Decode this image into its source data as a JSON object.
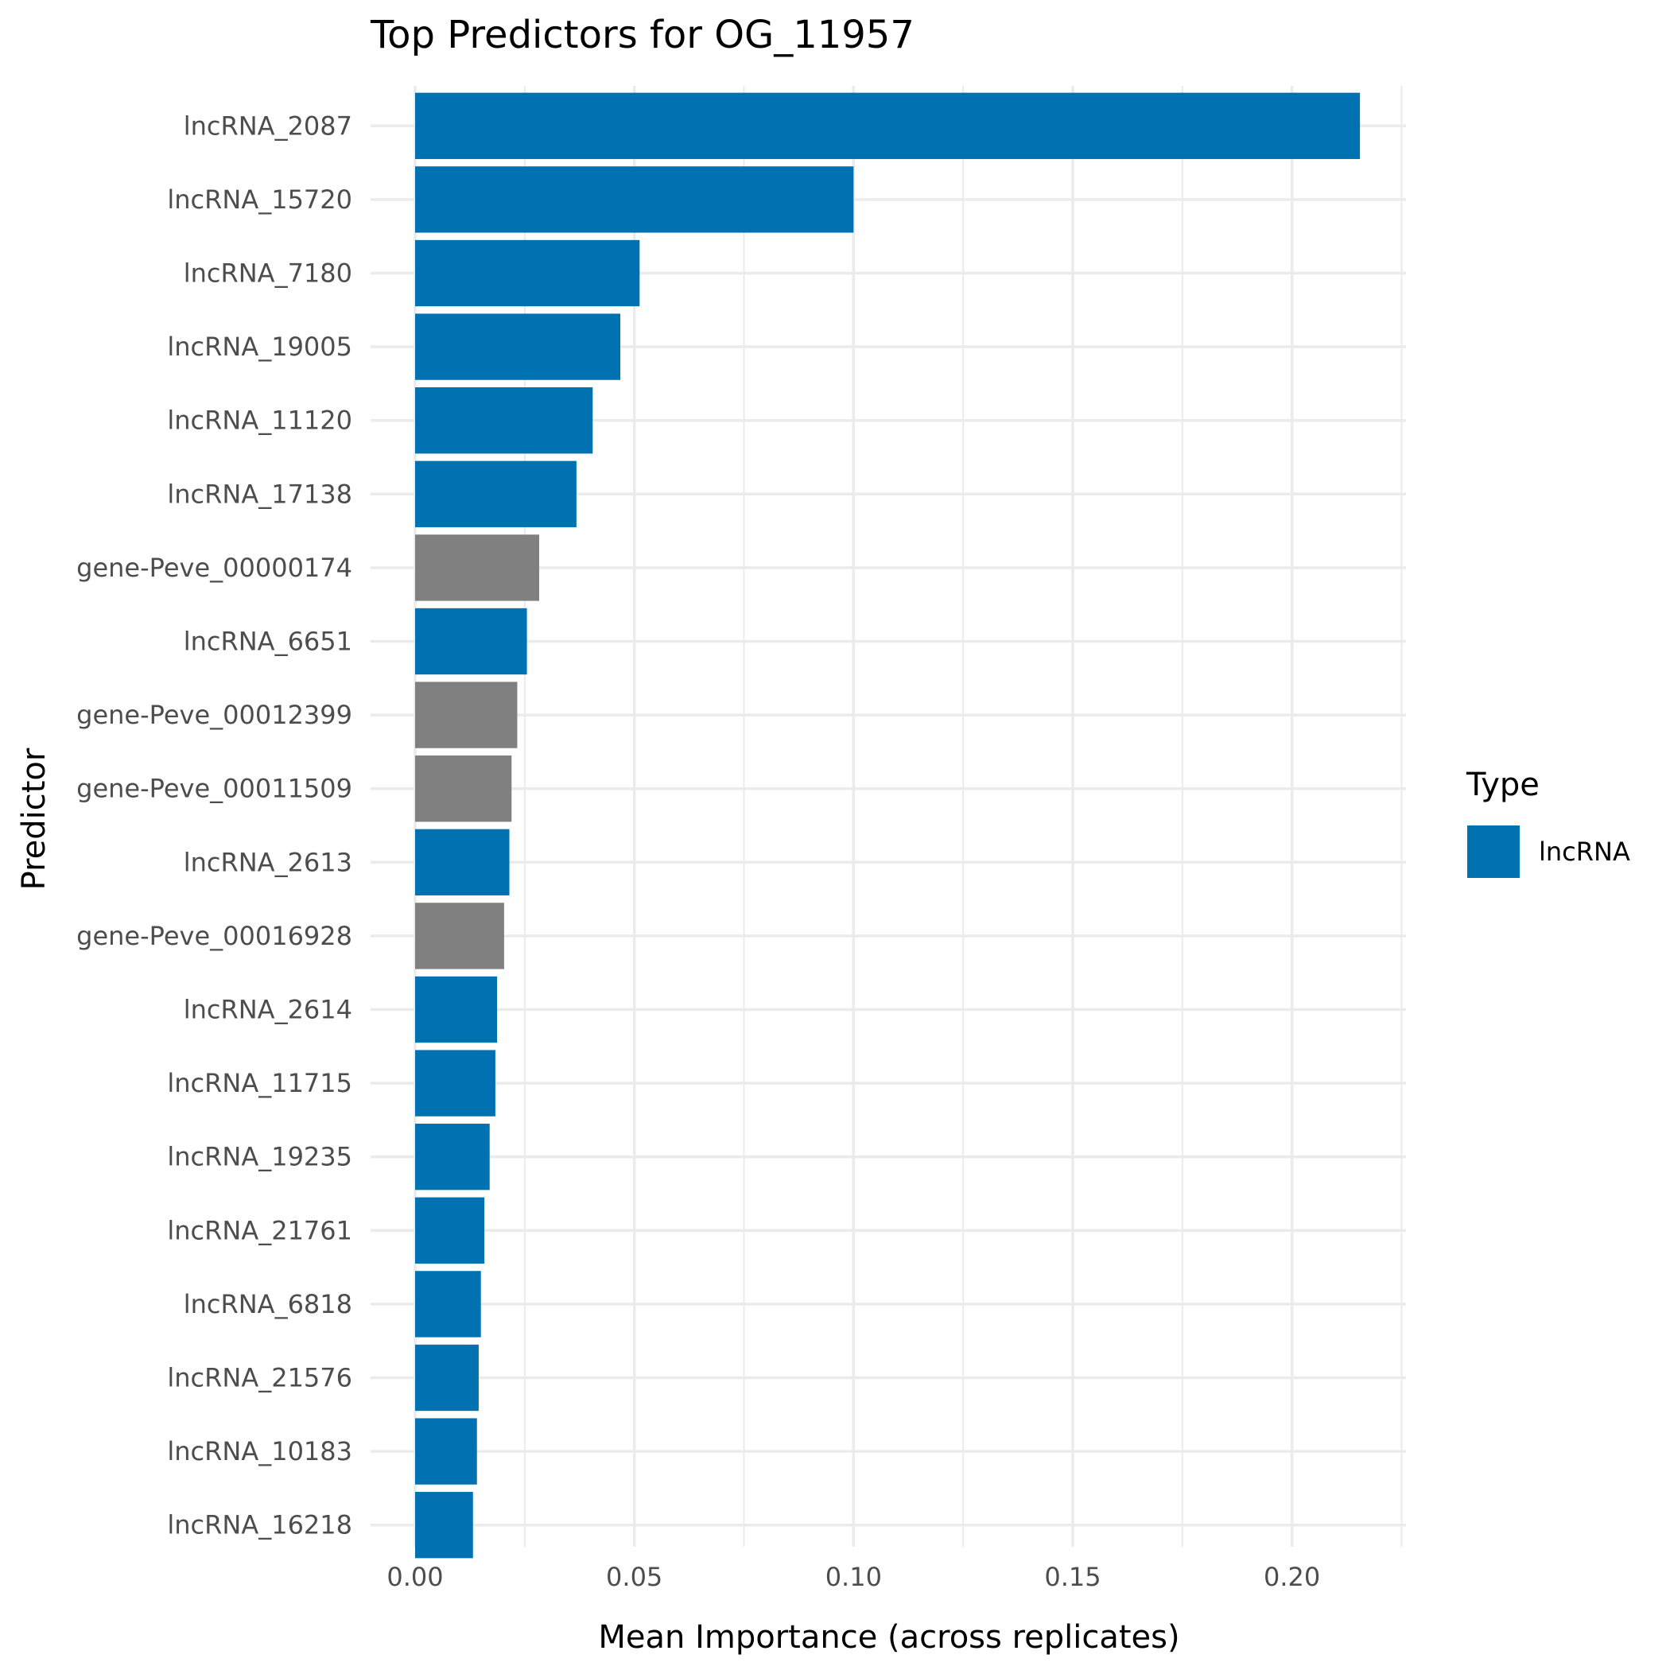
{
  "chart_data": {
    "type": "bar",
    "orientation": "horizontal",
    "title": "Top Predictors for OG_11957",
    "xlabel": "Mean Importance (across replicates)",
    "ylabel": "Predictor",
    "xlim": [
      0,
      0.226
    ],
    "xticks": [
      0.0,
      0.05,
      0.1,
      0.15,
      0.2
    ],
    "xtick_labels": [
      "0.00",
      "0.05",
      "0.10",
      "0.15",
      "0.20"
    ],
    "grid": true,
    "categories": [
      "lncRNA_2087",
      "lncRNA_15720",
      "lncRNA_7180",
      "lncRNA_19005",
      "lncRNA_11120",
      "lncRNA_17138",
      "gene-Peve_00000174",
      "lncRNA_6651",
      "gene-Peve_00012399",
      "gene-Peve_00011509",
      "lncRNA_2613",
      "gene-Peve_00016928",
      "lncRNA_2614",
      "lncRNA_11715",
      "lncRNA_19235",
      "lncRNA_21761",
      "lncRNA_6818",
      "lncRNA_21576",
      "lncRNA_10183",
      "lncRNA_16218"
    ],
    "values": [
      0.2155,
      0.1,
      0.0512,
      0.0468,
      0.0405,
      0.0368,
      0.0283,
      0.0255,
      0.0233,
      0.022,
      0.0215,
      0.0203,
      0.0187,
      0.0183,
      0.017,
      0.0158,
      0.015,
      0.0145,
      0.0141,
      0.0132
    ],
    "types": [
      "lncRNA",
      "lncRNA",
      "lncRNA",
      "lncRNA",
      "lncRNA",
      "lncRNA",
      "gene",
      "lncRNA",
      "gene",
      "gene",
      "lncRNA",
      "gene",
      "lncRNA",
      "lncRNA",
      "lncRNA",
      "lncRNA",
      "lncRNA",
      "lncRNA",
      "lncRNA",
      "lncRNA"
    ],
    "type_colors": {
      "lncRNA": "#0072B2",
      "gene": "#808080"
    },
    "legend": {
      "title": "Type",
      "position": "right",
      "entries": [
        {
          "label": "lncRNA",
          "color": "#0072B2"
        }
      ]
    }
  }
}
